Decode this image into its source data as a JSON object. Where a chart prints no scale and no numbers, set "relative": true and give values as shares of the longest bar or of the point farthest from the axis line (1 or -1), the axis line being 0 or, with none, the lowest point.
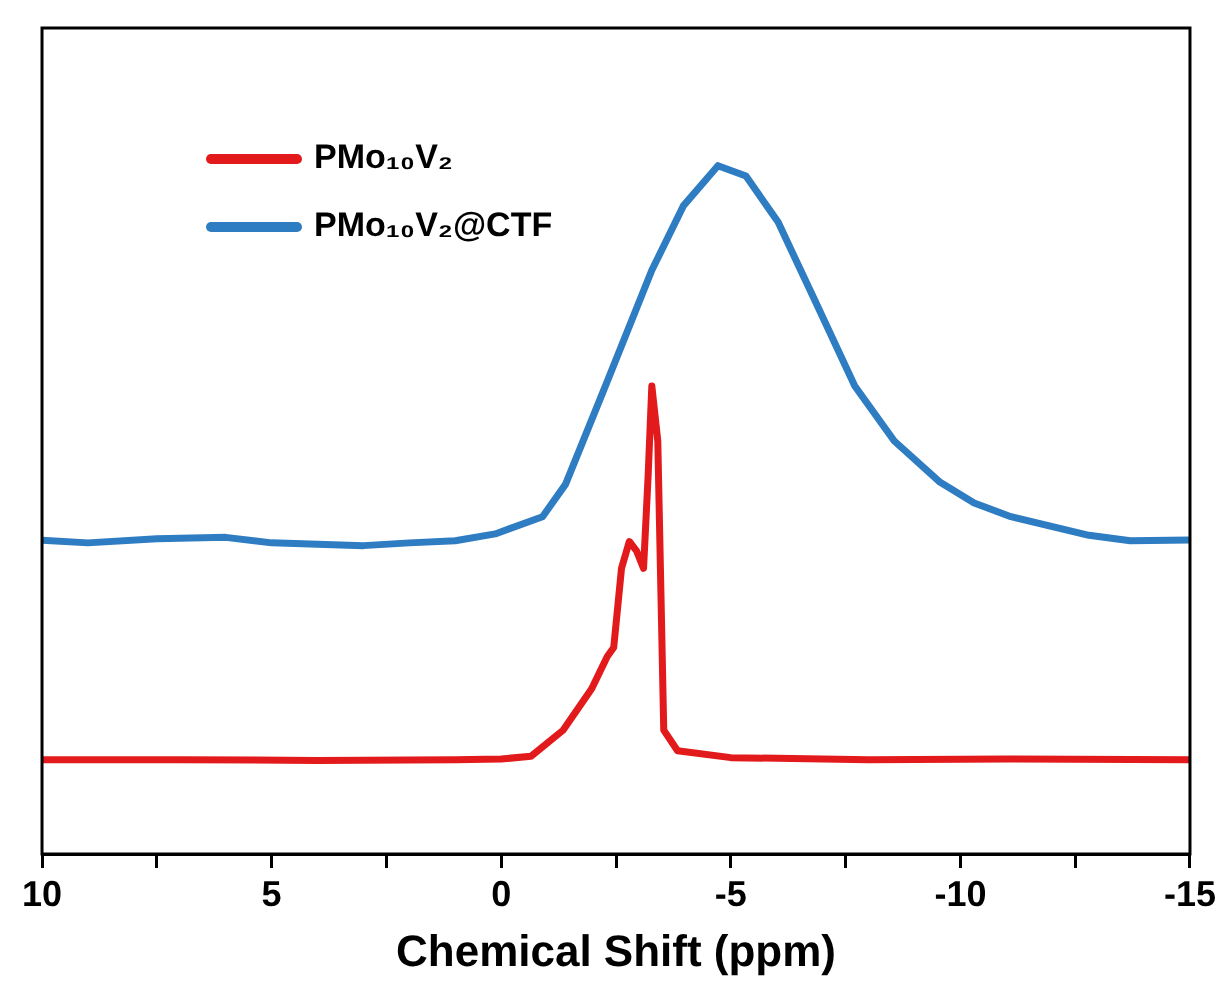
{
  "chart_data": {
    "type": "line",
    "relative": true,
    "xlabel": "Chemical Shift (ppm)",
    "xlim": [
      10,
      -15
    ],
    "xticks": [
      10,
      {
        "value": 7.5,
        "label": null
      },
      5,
      {
        "value": 2.5,
        "label": null
      },
      0,
      {
        "value": -2.5,
        "label": null
      },
      -5,
      {
        "value": -7.5,
        "label": null
      },
      -10,
      {
        "value": -12.5,
        "label": null
      },
      -15
    ],
    "legend": "top left",
    "grid": false,
    "marker": "none",
    "line_style": "solid",
    "series": [
      {
        "name": "PMo₁₀V₂",
        "color": "#e31a1c",
        "x": [
          10,
          7,
          4,
          1,
          0,
          -0.65,
          -1.35,
          -1.97,
          -2.31,
          -2.45,
          -2.62,
          -2.79,
          -2.95,
          -3.1,
          -3.2,
          -3.28,
          -3.41,
          -3.54,
          -3.84,
          -5,
          -8,
          -11,
          -15
        ],
        "values": [
          0.137,
          0.137,
          0.136,
          0.137,
          0.138,
          0.142,
          0.18,
          0.24,
          0.287,
          0.3,
          0.415,
          0.454,
          0.44,
          0.415,
          0.55,
          0.68,
          0.6,
          0.18,
          0.15,
          0.14,
          0.137,
          0.138,
          0.137
        ]
      },
      {
        "name": "PMo₁₀V₂@CTF",
        "color": "#2e7cc2",
        "x": [
          10,
          9,
          7.5,
          6,
          5,
          4,
          3,
          2,
          1,
          0.13,
          -0.9,
          -1.4,
          -2.27,
          -3.28,
          -3.97,
          -4.72,
          -5.33,
          -6.03,
          -6.86,
          -7.7,
          -8.56,
          -9.56,
          -10.3,
          -11.1,
          -12.8,
          -13.7,
          -15
        ],
        "values": [
          0.456,
          0.452,
          0.458,
          0.46,
          0.452,
          0.45,
          0.448,
          0.452,
          0.455,
          0.465,
          0.49,
          0.537,
          0.68,
          0.848,
          0.942,
          1,
          0.985,
          0.918,
          0.8,
          0.68,
          0.6,
          0.54,
          0.51,
          0.49,
          0.463,
          0.455,
          0.456
        ]
      }
    ]
  }
}
